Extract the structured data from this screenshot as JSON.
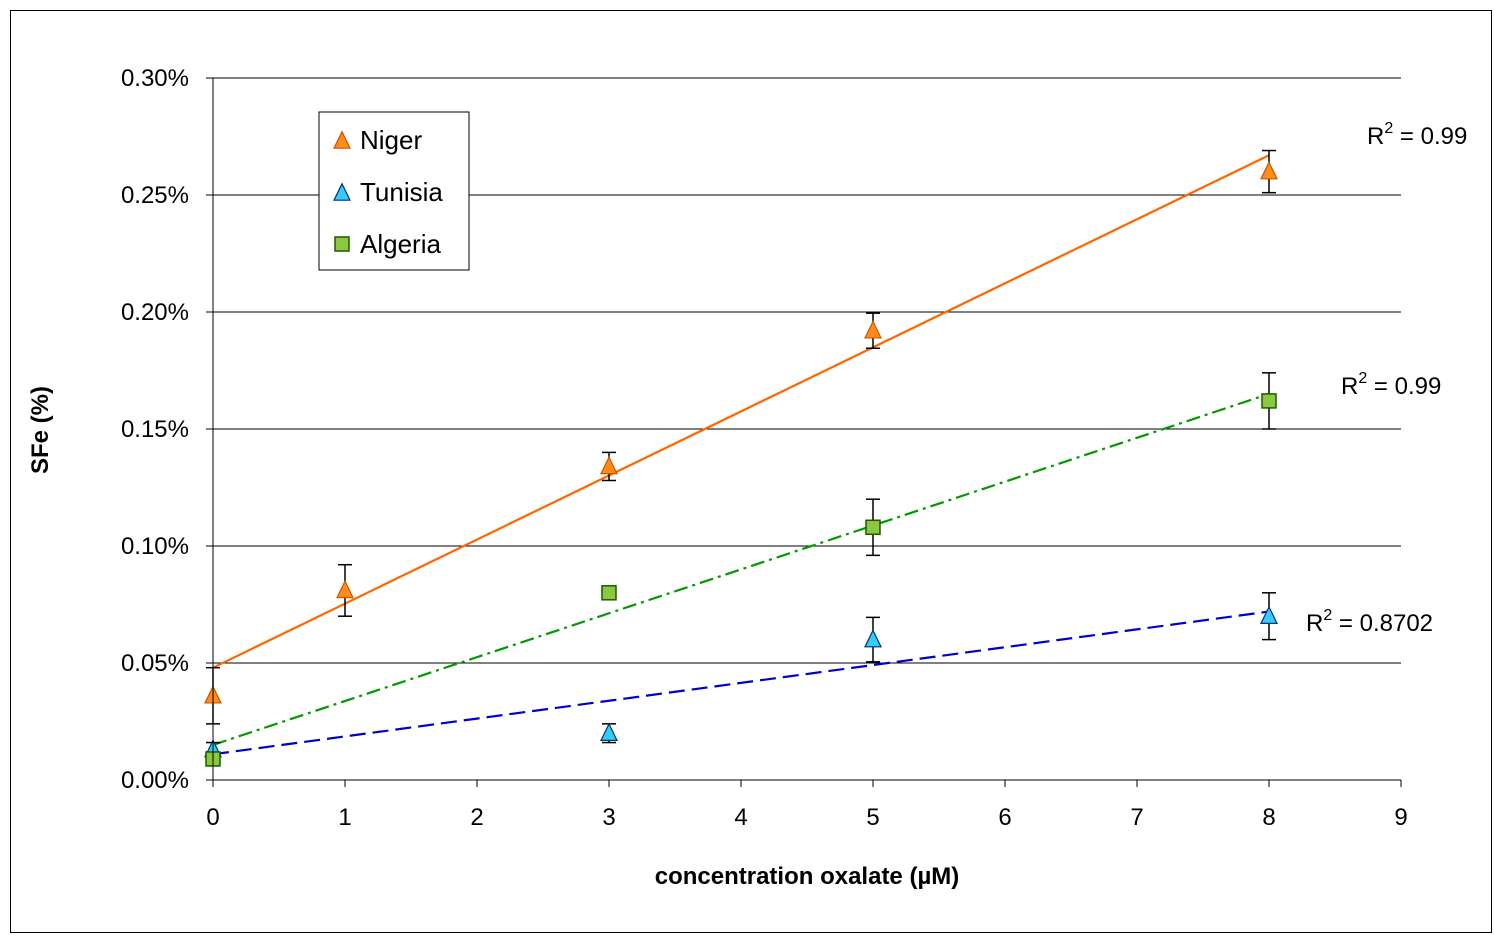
{
  "chart_data": {
    "type": "scatter",
    "title": "",
    "xlabel": "concentration oxalate (µM)",
    "ylabel": "SFe (%)",
    "xlim": [
      0,
      9
    ],
    "ylim": [
      0,
      0.3
    ],
    "x_ticks": [
      "0",
      "1",
      "2",
      "3",
      "4",
      "5",
      "6",
      "7",
      "8",
      "9"
    ],
    "y_ticks": [
      "0.00%",
      "0.05%",
      "0.10%",
      "0.15%",
      "0.20%",
      "0.25%",
      "0.30%"
    ],
    "grid": "horizontal",
    "legend_position": "top-left",
    "series": [
      {
        "name": "Niger",
        "marker": "triangle",
        "color": "#ff8c1a",
        "line_color": "#ff6600",
        "line_style": "solid",
        "points": [
          {
            "x": 0,
            "y": 0.036,
            "err": 0.012
          },
          {
            "x": 1,
            "y": 0.081,
            "err": 0.011
          },
          {
            "x": 3,
            "y": 0.134,
            "err": 0.006
          },
          {
            "x": 5,
            "y": 0.192,
            "err": 0.0075
          },
          {
            "x": 8,
            "y": 0.26,
            "err": 0.009
          }
        ],
        "trend": {
          "x0": 0,
          "y0": 0.048,
          "x1": 8,
          "y1": 0.267
        },
        "r2_label": {
          "base": "R",
          "sup": "2",
          "value": " = 0.99"
        }
      },
      {
        "name": "Tunisia",
        "marker": "triangle",
        "color": "#33ccff",
        "line_color": "#0000cc",
        "line_style": "dashed",
        "points": [
          {
            "x": 0,
            "y": 0.013,
            "err": 0.003
          },
          {
            "x": 3,
            "y": 0.02,
            "err": 0.004
          },
          {
            "x": 5,
            "y": 0.06,
            "err": 0.0095
          },
          {
            "x": 8,
            "y": 0.07,
            "err": 0.01
          }
        ],
        "trend": {
          "x0": 0,
          "y0": 0.011,
          "x1": 8,
          "y1": 0.072
        },
        "r2_label": {
          "base": "R",
          "sup": "2",
          "value": " = 0.8702"
        }
      },
      {
        "name": "Algeria",
        "marker": "square",
        "color": "#8dc63f",
        "line_color": "#009900",
        "line_style": "dash-dot",
        "points": [
          {
            "x": 0,
            "y": 0.009,
            "err": 0
          },
          {
            "x": 3,
            "y": 0.08,
            "err": 0
          },
          {
            "x": 5,
            "y": 0.108,
            "err": 0.012
          },
          {
            "x": 8,
            "y": 0.162,
            "err": 0.012
          }
        ],
        "trend": {
          "x0": 0,
          "y0": 0.015,
          "x1": 8,
          "y1": 0.165
        },
        "r2_label": {
          "base": "R",
          "sup": "2",
          "value": " = 0.99"
        }
      }
    ]
  }
}
